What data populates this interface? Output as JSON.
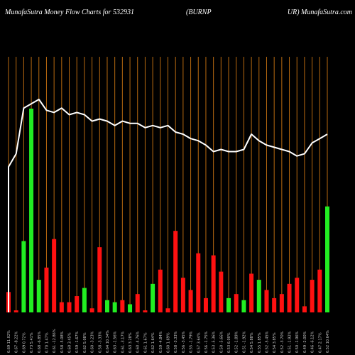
{
  "header": {
    "left": "MunafaSutra  Money Flow  Charts for 532931",
    "middle": "(BURNP",
    "right": "UR) MunafaSutra.com"
  },
  "colors": {
    "background": "#000000",
    "gridline": "#b86a10",
    "up_bar": "#22ee22",
    "down_bar": "#ff1111",
    "line": "#ffffff",
    "tick_text": "#cccccc"
  },
  "chart_data": {
    "type": "bar",
    "title": "MunafaSutra  Money Flow  Charts for 532931 (BURNPUR) MunafaSutra.com",
    "xlabel": "",
    "ylabel": "",
    "grid": true,
    "categories": [
      "0.69 11.02%",
      "0.67 -8.22%",
      "0.69 0.72%",
      "0.73 5.41%",
      "0.68 -6.85%",
      "0.70 1.47%",
      "0.61 -12.86%",
      "0.58 -5.08%",
      "0.60 3.45%",
      "0.59 -1.67%",
      "0.62 5.08%",
      "0.60 -3.23%",
      "0.58 -3.33%",
      "0.64 10.34%",
      "0.63 -1.56%",
      "0.61 -3.17%",
      "0.63 3.28%",
      "0.60 -4.76%",
      "0.61 1.67%",
      "0.62 1.64%",
      "0.59 -4.84%",
      "0.60 1.69%",
      "0.58 -3.33%",
      "0.56 -3.45%",
      "0.55 -1.79%",
      "0.57 3.64%",
      "0.56 -1.75%",
      "0.53 -5.36%",
      "0.50 -5.66%",
      "0.53 6.00%",
      "0.52 -1.89%",
      "0.51 -1.92%",
      "0.54 5.88%",
      "0.55 1.85%",
      "0.52 -5.45%",
      "0.54 3.85%",
      "0.52 -3.70%",
      "0.51 -1.92%",
      "0.50 -1.96%",
      "0.49 -2.00%",
      "0.46 -6.12%",
      "0.47 2.17%",
      "0.52 10.64%"
    ],
    "bars": {
      "name": "Money flow volume",
      "values": [
        10,
        1,
        35,
        100,
        16,
        22,
        36,
        5,
        5,
        8,
        12,
        2,
        32,
        6,
        5,
        6,
        4,
        9,
        1,
        14,
        21,
        2,
        40,
        17,
        11,
        29,
        7,
        28,
        20,
        7,
        9,
        6,
        19,
        16,
        11,
        7,
        9,
        14,
        17,
        3,
        16,
        21,
        52
      ],
      "direction": [
        "down",
        "down",
        "up",
        "up",
        "up",
        "down",
        "down",
        "down",
        "down",
        "down",
        "up",
        "down",
        "down",
        "up",
        "up",
        "down",
        "up",
        "down",
        "down",
        "up",
        "down",
        "down",
        "down",
        "down",
        "down",
        "down",
        "down",
        "down",
        "down",
        "up",
        "down",
        "up",
        "down",
        "up",
        "down",
        "down",
        "down",
        "down",
        "down",
        "down",
        "down",
        "down",
        "up"
      ]
    },
    "line": {
      "name": "Price",
      "values": [
        0.59,
        0.65,
        0.86,
        0.88,
        0.9,
        0.85,
        0.84,
        0.86,
        0.83,
        0.84,
        0.83,
        0.8,
        0.81,
        0.8,
        0.78,
        0.8,
        0.79,
        0.79,
        0.77,
        0.78,
        0.77,
        0.78,
        0.75,
        0.74,
        0.72,
        0.71,
        0.69,
        0.66,
        0.67,
        0.66,
        0.66,
        0.67,
        0.74,
        0.71,
        0.69,
        0.68,
        0.67,
        0.66,
        0.64,
        0.65,
        0.7,
        0.72,
        0.74
      ]
    }
  }
}
